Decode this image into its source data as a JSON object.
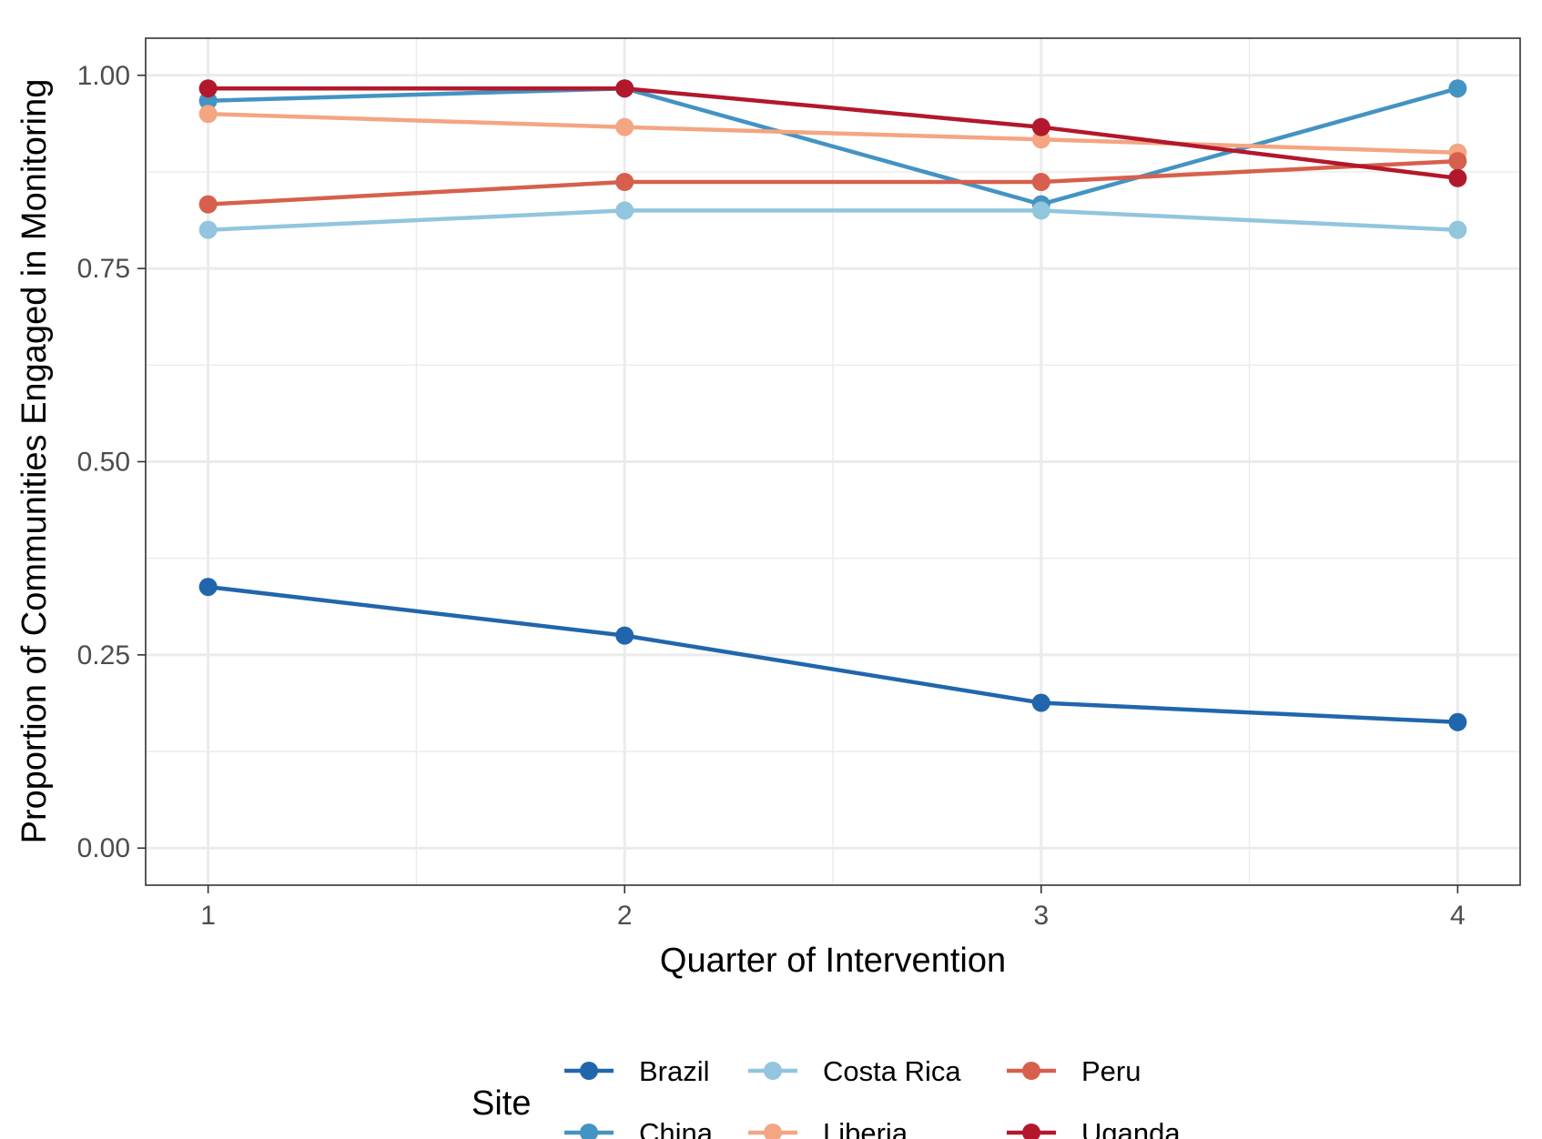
{
  "chart_data": {
    "type": "line",
    "xlabel": "Quarter of Intervention",
    "ylabel": "Proportion of Communities Engaged in Monitoring",
    "x": [
      1,
      2,
      3,
      4
    ],
    "x_ticks": [
      "1",
      "2",
      "3",
      "4"
    ],
    "xlim": [
      0.85,
      4.15
    ],
    "y_ticks": [
      "0.00",
      "0.25",
      "0.50",
      "0.75",
      "1.00"
    ],
    "ylim": [
      -0.048,
      1.048
    ],
    "grid": true,
    "legend": {
      "title": "Site",
      "position": "bottom"
    },
    "series": [
      {
        "name": "Brazil",
        "color": "#2166ac",
        "values": [
          0.338,
          0.275,
          0.188,
          0.163
        ]
      },
      {
        "name": "China",
        "color": "#4393c3",
        "values": [
          0.967,
          0.983,
          0.833,
          0.983
        ]
      },
      {
        "name": "Costa Rica",
        "color": "#92c5de",
        "values": [
          0.8,
          0.825,
          0.825,
          0.8
        ]
      },
      {
        "name": "Liberia",
        "color": "#f4a582",
        "values": [
          0.95,
          0.933,
          0.917,
          0.9
        ]
      },
      {
        "name": "Peru",
        "color": "#d6604d",
        "values": [
          0.833,
          0.862,
          0.862,
          0.889
        ]
      },
      {
        "name": "Uganda",
        "color": "#b2182b",
        "values": [
          0.983,
          0.983,
          0.933,
          0.867
        ]
      }
    ]
  }
}
